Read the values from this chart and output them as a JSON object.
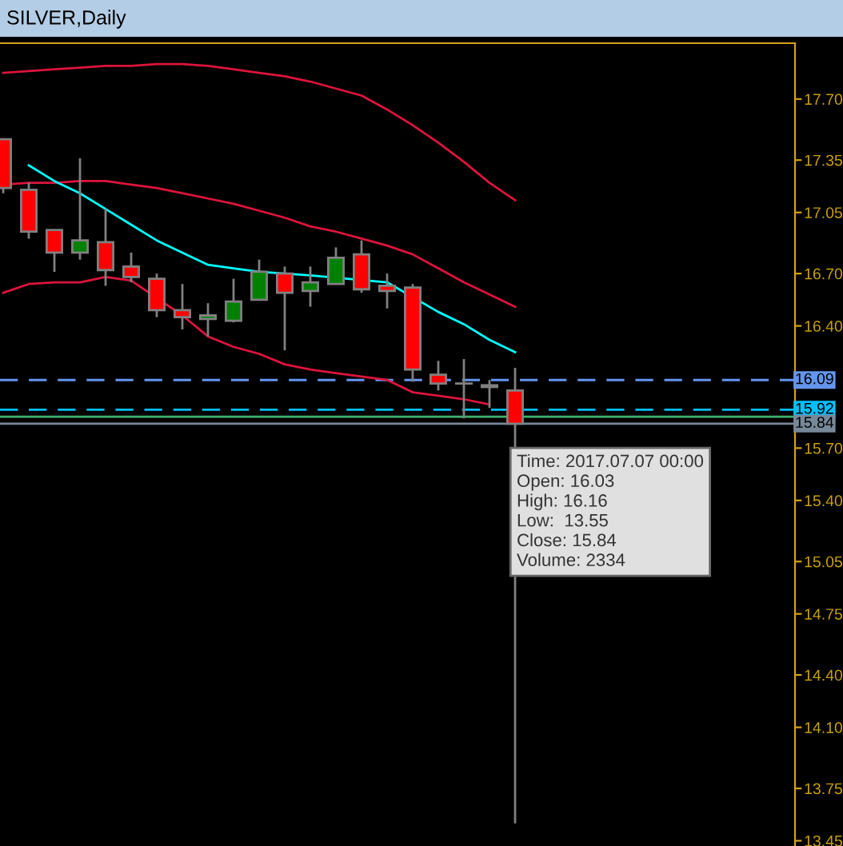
{
  "chart_data": {
    "type": "candlestick",
    "title": "SILVER,Daily",
    "categories": [
      null,
      null,
      null,
      null,
      null,
      null,
      null,
      null,
      null,
      null,
      null,
      null,
      null,
      null,
      null,
      null,
      null,
      null,
      null,
      null,
      null
    ],
    "ohlc": [
      [
        17.47,
        17.47,
        17.16,
        17.19
      ],
      [
        17.18,
        17.22,
        16.9,
        16.94
      ],
      [
        16.95,
        16.95,
        16.71,
        16.82
      ],
      [
        16.82,
        17.36,
        16.78,
        16.89
      ],
      [
        16.88,
        17.07,
        16.63,
        16.72
      ],
      [
        16.74,
        16.82,
        16.65,
        16.68
      ],
      [
        16.67,
        16.7,
        16.45,
        16.49
      ],
      [
        16.49,
        16.64,
        16.38,
        16.45
      ],
      [
        16.44,
        16.53,
        16.34,
        16.46
      ],
      [
        16.43,
        16.67,
        16.42,
        16.54
      ],
      [
        16.55,
        16.78,
        16.55,
        16.71
      ],
      [
        16.7,
        16.74,
        16.26,
        16.59
      ],
      [
        16.6,
        16.74,
        16.51,
        16.65
      ],
      [
        16.64,
        16.85,
        16.64,
        16.79
      ],
      [
        16.81,
        16.89,
        16.59,
        16.61
      ],
      [
        16.63,
        16.7,
        16.5,
        16.6
      ],
      [
        16.62,
        16.64,
        16.08,
        16.15
      ],
      [
        16.12,
        16.2,
        16.03,
        16.07
      ],
      [
        16.07,
        16.21,
        15.87,
        16.07
      ],
      [
        16.06,
        16.09,
        15.93,
        16.05
      ],
      [
        16.03,
        16.16,
        13.55,
        15.84
      ]
    ],
    "colors": [
      "#ff0000",
      "#ff0000",
      "#ff0000",
      "#008000",
      "#ff0000",
      "#ff0000",
      "#ff0000",
      "#ff0000",
      "#008000",
      "#008000",
      "#008000",
      "#ff0000",
      "#008000",
      "#008000",
      "#ff0000",
      "#ff0000",
      "#ff0000",
      "#ff0000",
      "#808080",
      "#ff0000",
      "#ff0000"
    ],
    "series": [
      {
        "type": "line",
        "color": "#dc143c",
        "values": [
          17.85,
          17.86,
          17.87,
          17.88,
          17.89,
          17.89,
          17.9,
          17.9,
          17.89,
          17.87,
          17.85,
          17.83,
          17.8,
          17.76,
          17.72,
          17.64,
          17.55,
          17.45,
          17.34,
          17.22,
          17.12
        ]
      },
      {
        "type": "line",
        "color": "#dc143c",
        "values": [
          17.21,
          17.22,
          17.22,
          17.23,
          17.23,
          17.21,
          17.19,
          17.16,
          17.13,
          17.1,
          17.06,
          17.02,
          16.97,
          16.94,
          16.9,
          16.86,
          16.81,
          16.73,
          16.65,
          16.58,
          16.51
        ]
      },
      {
        "type": "line",
        "color": "#dc143c",
        "values": [
          16.59,
          16.64,
          16.65,
          16.65,
          16.68,
          16.66,
          16.56,
          16.46,
          16.34,
          16.28,
          16.24,
          16.18,
          16.15,
          16.13,
          16.11,
          16.09,
          16.02,
          16.0,
          15.98,
          15.95,
          null
        ]
      },
      {
        "type": "line",
        "color": "#00ffff",
        "values": [
          null,
          17.32,
          17.23,
          17.16,
          17.07,
          16.98,
          16.89,
          16.82,
          16.75,
          16.73,
          16.71,
          16.7,
          16.69,
          null,
          null,
          16.65,
          null,
          16.48,
          16.41,
          16.32,
          16.25
        ]
      }
    ],
    "ref_lines": [
      {
        "axis": "y",
        "value": 16.09,
        "label": "16.09",
        "color": "#6495ed",
        "line_style": "dashed"
      },
      {
        "axis": "y",
        "value": 15.92,
        "label": "15.92",
        "color": "#00bfff",
        "line_style": "dashed"
      },
      {
        "axis": "y",
        "value": 15.88,
        "color": "#3cb371",
        "line_style": "solid"
      },
      {
        "axis": "y",
        "value": 15.84,
        "label": "15.84",
        "color": "#778899",
        "line_style": "solid"
      }
    ],
    "annotations": [
      "Time: 2017.07.07 00:00\nOpen: 16.03\nHigh: 16.16\nLow:  13.55\nClose: 15.84\nVolume: 2334"
    ],
    "ylim": [
      13.42,
      18.02
    ],
    "yticks": [
      {
        "value": 17.7,
        "label": "17.70"
      },
      17.35,
      17.05,
      {
        "value": 16.7,
        "label": "16.70"
      },
      {
        "value": 16.4,
        "label": "16.40"
      },
      {
        "value": 15.7,
        "label": "15.70"
      },
      {
        "value": 15.4,
        "label": "15.40"
      },
      15.05,
      14.75,
      {
        "value": 14.4,
        "label": "14.40"
      },
      {
        "value": 14.1,
        "label": "14.10"
      },
      13.75,
      13.45
    ],
    "tick_labels": "y",
    "grid": false,
    "legend": false
  }
}
